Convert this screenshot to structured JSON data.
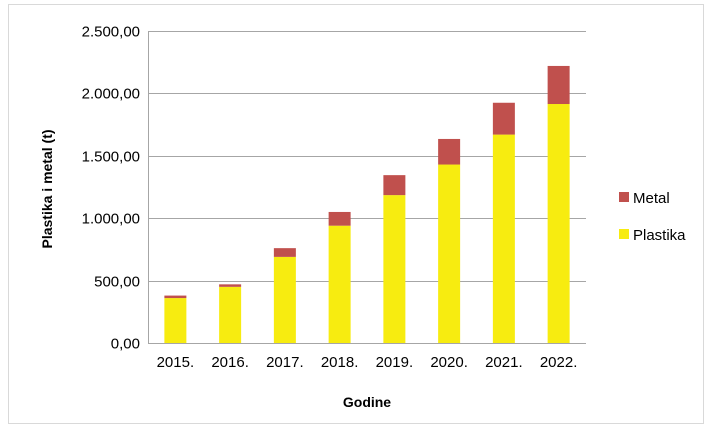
{
  "chart_data": {
    "type": "bar",
    "stacked": true,
    "categories": [
      "2015.",
      "2016.",
      "2017.",
      "2018.",
      "2019.",
      "2020.",
      "2021.",
      "2022."
    ],
    "series": [
      {
        "name": "Plastika",
        "color": "#f7ec10",
        "values": [
          360,
          450,
          690,
          940,
          1185,
          1430,
          1670,
          1915
        ]
      },
      {
        "name": "Metal",
        "color": "#c0504d",
        "values": [
          20,
          20,
          70,
          110,
          160,
          205,
          255,
          305
        ]
      }
    ],
    "xlabel": "Godine",
    "ylabel": "Plastika i metal (t)",
    "ylim": [
      0,
      2500
    ],
    "yticks": [
      0,
      500,
      1000,
      1500,
      2000,
      2500
    ],
    "ytick_labels": [
      "0,00",
      "500,00",
      "1.000,00",
      "1.500,00",
      "2.000,00",
      "2.500,00"
    ],
    "grid": true,
    "legend": {
      "position": "right",
      "entries": [
        "Metal",
        "Plastika"
      ]
    }
  }
}
